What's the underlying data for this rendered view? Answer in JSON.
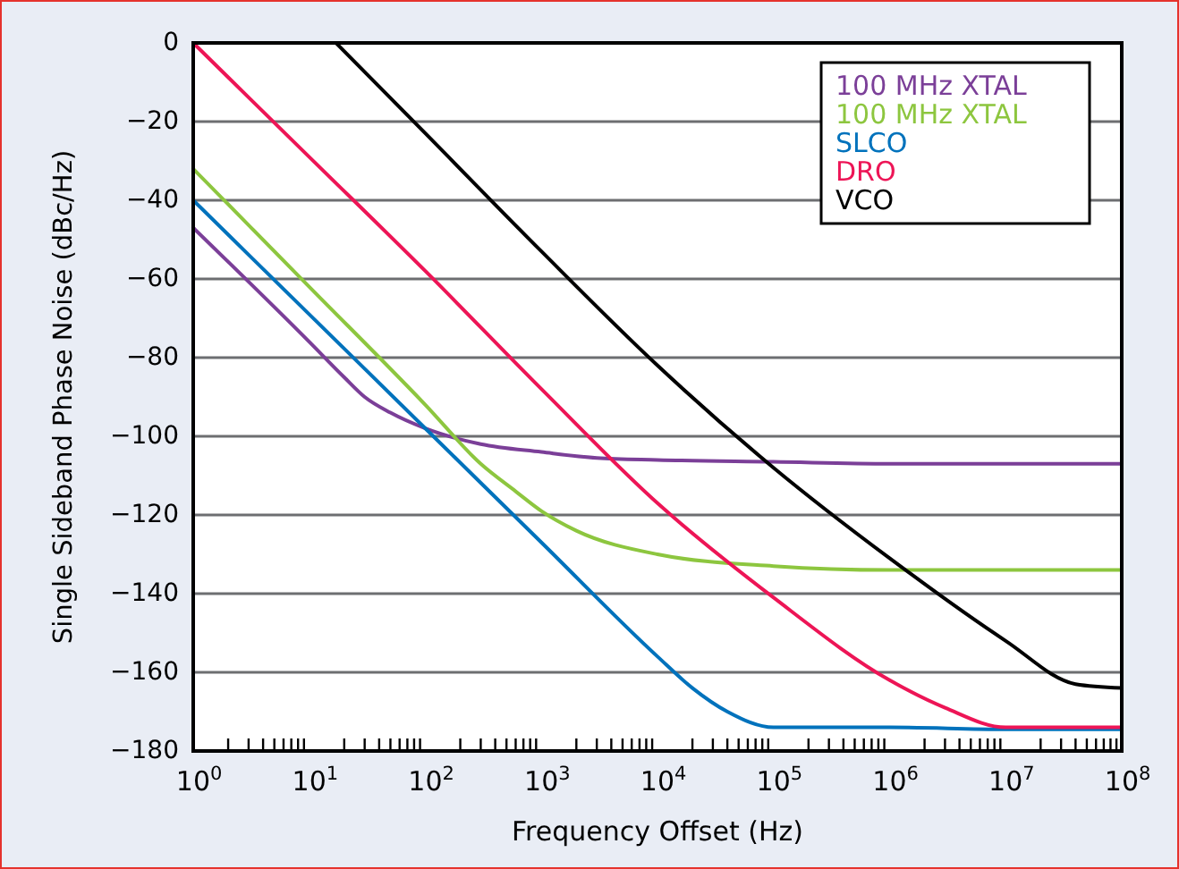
{
  "chart_data": {
    "type": "line",
    "xlabel": "Frequency Offset (Hz)",
    "ylabel": "Single Sideband Phase Noise (dBc/Hz)",
    "log": "x",
    "grid": "y",
    "legend": "top right",
    "line_style": "solid",
    "marker": "none",
    "xlim": [
      1,
      100000000
    ],
    "ylim": [
      -180,
      0
    ],
    "xticks": [
      {
        "value": 1,
        "label": "10$^{0}$"
      },
      {
        "value": 2,
        "label": null
      },
      {
        "value": 3,
        "label": null
      },
      {
        "value": 4,
        "label": null
      },
      {
        "value": 5,
        "label": null
      },
      {
        "value": 6,
        "label": null
      },
      {
        "value": 7,
        "label": null
      },
      {
        "value": 8,
        "label": null
      },
      {
        "value": 9,
        "label": null
      },
      {
        "value": 10,
        "label": "10$^{1}$"
      },
      {
        "value": 20,
        "label": null
      },
      {
        "value": 30,
        "label": null
      },
      {
        "value": 40,
        "label": null
      },
      {
        "value": 50,
        "label": null
      },
      {
        "value": 60,
        "label": null
      },
      {
        "value": 70,
        "label": null
      },
      {
        "value": 80,
        "label": null
      },
      {
        "value": 90,
        "label": null
      },
      {
        "value": 100,
        "label": "10$^{2}$"
      },
      {
        "value": 200,
        "label": null
      },
      {
        "value": 300,
        "label": null
      },
      {
        "value": 400,
        "label": null
      },
      {
        "value": 500,
        "label": null
      },
      {
        "value": 600,
        "label": null
      },
      {
        "value": 700,
        "label": null
      },
      {
        "value": 800,
        "label": null
      },
      {
        "value": 900,
        "label": null
      },
      {
        "value": 1000,
        "label": "10$^{3}$"
      },
      {
        "value": 2000,
        "label": null
      },
      {
        "value": 3000,
        "label": null
      },
      {
        "value": 4000,
        "label": null
      },
      {
        "value": 5000,
        "label": null
      },
      {
        "value": 6000,
        "label": null
      },
      {
        "value": 7000,
        "label": null
      },
      {
        "value": 8000,
        "label": null
      },
      {
        "value": 9000,
        "label": null
      },
      {
        "value": 10000,
        "label": "10$^{4}$"
      },
      {
        "value": 20000,
        "label": null
      },
      {
        "value": 30000,
        "label": null
      },
      {
        "value": 40000,
        "label": null
      },
      {
        "value": 50000,
        "label": null
      },
      {
        "value": 60000,
        "label": null
      },
      {
        "value": 70000,
        "label": null
      },
      {
        "value": 80000,
        "label": null
      },
      {
        "value": 90000,
        "label": null
      },
      {
        "value": 100000,
        "label": "10$^{5}$"
      },
      {
        "value": 200000,
        "label": null
      },
      {
        "value": 300000,
        "label": null
      },
      {
        "value": 400000,
        "label": null
      },
      {
        "value": 500000,
        "label": null
      },
      {
        "value": 600000,
        "label": null
      },
      {
        "value": 700000,
        "label": null
      },
      {
        "value": 800000,
        "label": null
      },
      {
        "value": 900000,
        "label": null
      },
      {
        "value": 1000000,
        "label": "10$^{6}$"
      },
      {
        "value": 2000000,
        "label": null
      },
      {
        "value": 3000000,
        "label": null
      },
      {
        "value": 4000000,
        "label": null
      },
      {
        "value": 5000000,
        "label": null
      },
      {
        "value": 6000000,
        "label": null
      },
      {
        "value": 7000000,
        "label": null
      },
      {
        "value": 8000000,
        "label": null
      },
      {
        "value": 9000000,
        "label": null
      },
      {
        "value": 10000000,
        "label": "10$^{7}$"
      },
      {
        "value": 20000000,
        "label": null
      },
      {
        "value": 30000000,
        "label": null
      },
      {
        "value": 40000000,
        "label": null
      },
      {
        "value": 50000000,
        "label": null
      },
      {
        "value": 60000000,
        "label": null
      },
      {
        "value": 70000000,
        "label": null
      },
      {
        "value": 80000000,
        "label": null
      },
      {
        "value": 90000000,
        "label": null
      },
      {
        "value": 100000000,
        "label": "10$^{8}$"
      }
    ],
    "yticks": [
      {
        "value": -180,
        "label": "−180"
      },
      {
        "value": -160,
        "label": "−160"
      },
      {
        "value": -140,
        "label": "−140"
      },
      {
        "value": -120,
        "label": "−120"
      },
      {
        "value": -100,
        "label": "−100"
      },
      {
        "value": -80,
        "label": "−80"
      },
      {
        "value": -60,
        "label": "−60"
      },
      {
        "value": -40,
        "label": "−40"
      },
      {
        "value": -20,
        "label": "−20"
      },
      0
    ],
    "series": [
      {
        "name": "100 MHz XTAL",
        "color": "#7b3f98",
        "x": [
          1,
          10,
          20,
          30,
          50,
          100,
          300,
          1000,
          3000,
          10000,
          100000,
          1000000,
          100000000
        ],
        "values": [
          -47,
          -76,
          -85,
          -90,
          -94,
          -98,
          -102,
          -104,
          -105.5,
          -106,
          -106.5,
          -107,
          -107
        ]
      },
      {
        "name": "100 MHz XTAL",
        "color": "#8dc63f",
        "x": [
          1,
          10,
          100,
          300,
          600,
          1000,
          2000,
          10000,
          100000,
          1000000,
          100000000
        ],
        "values": [
          -32,
          -62,
          -92,
          -107,
          -114,
          -119,
          -124,
          -130,
          -133,
          -134,
          -134
        ]
      },
      {
        "name": "SLCO",
        "color": "#0072bc",
        "x": [
          1,
          10,
          100,
          1000,
          10000,
          20000,
          40000,
          100000,
          1000000,
          10000000,
          100000000
        ],
        "values": [
          -40,
          -69,
          -98,
          -127,
          -156,
          -164,
          -170,
          -174,
          -174,
          -174.5,
          -174.5
        ]
      },
      {
        "name": "DRO",
        "color": "#ed1556",
        "x": [
          1,
          10,
          100,
          1000,
          10000,
          100000,
          1000000,
          3000000,
          10000000,
          100000000
        ],
        "values": [
          0,
          -29,
          -58,
          -88,
          -117,
          -141,
          -162,
          -169,
          -174,
          -174
        ]
      },
      {
        "name": "VCO",
        "color": "#000000",
        "x": [
          17,
          100,
          1000,
          10000,
          100000,
          1000000,
          10000000,
          40000000,
          100000000
        ],
        "values": [
          0,
          -23,
          -53,
          -82,
          -108,
          -131,
          -152,
          -163,
          -164
        ]
      }
    ]
  }
}
